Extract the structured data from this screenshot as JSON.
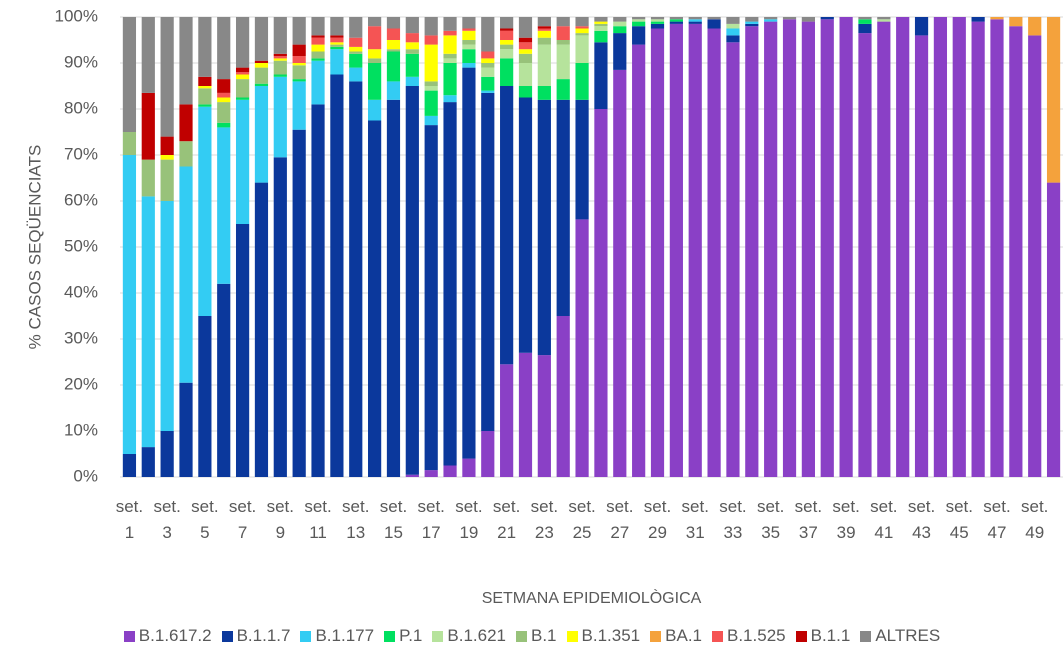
{
  "chart_data": {
    "type": "stacked_bar",
    "y_label": "% CASOS SEQÜENCIATS",
    "x_label": "SETMANA EPIDEMIOLÒGICA",
    "categories": [
      "set. 1",
      null,
      "set. 3",
      null,
      "set. 5",
      null,
      "set. 7",
      null,
      "set. 9",
      null,
      "set. 11",
      null,
      "set. 13",
      null,
      "set. 15",
      null,
      "set. 17",
      null,
      "set. 19",
      null,
      "set. 21",
      null,
      "set. 23",
      null,
      "set. 25",
      null,
      "set. 27",
      null,
      "set. 29",
      null,
      "set. 31",
      null,
      "set. 33",
      null,
      "set. 35",
      null,
      "set. 37",
      null,
      "set. 39",
      null,
      "set. 41",
      null,
      "set. 43",
      null,
      "set. 45",
      null,
      "set. 47",
      null,
      "set. 49",
      null
    ],
    "ylim": [
      0,
      100
    ],
    "yticks": [
      {
        "value": 0,
        "label": "0%"
      },
      {
        "value": 10,
        "label": "10%"
      },
      {
        "value": 20,
        "label": "20%"
      },
      {
        "value": 30,
        "label": "30%"
      },
      {
        "value": 40,
        "label": "40%"
      },
      {
        "value": 50,
        "label": "50%"
      },
      {
        "value": 60,
        "label": "60%"
      },
      {
        "value": 70,
        "label": "70%"
      },
      {
        "value": 80,
        "label": "80%"
      },
      {
        "value": 90,
        "label": "90%"
      },
      {
        "value": 100,
        "label": "100%"
      }
    ],
    "grid": true,
    "legend": "bottom",
    "series": [
      {
        "name": "B.1.617.2",
        "color": "#8a40c6",
        "values": [
          0,
          0,
          0,
          0,
          0,
          0,
          0,
          0,
          0,
          0,
          0,
          0,
          0,
          0,
          0,
          0.5,
          1.5,
          2.5,
          4,
          10,
          24.5,
          27,
          26.5,
          35,
          56,
          80,
          88.5,
          94,
          97.5,
          98.5,
          98.5,
          97.5,
          94.5,
          98,
          99,
          99.5,
          99,
          99.5,
          100,
          96.5,
          99,
          100,
          96,
          100,
          100,
          99,
          99.5,
          98,
          96,
          64
        ]
      },
      {
        "name": "B.1.1.7",
        "color": "#0b389c",
        "values": [
          5,
          6.5,
          10,
          20.5,
          35,
          42,
          55,
          64,
          69.5,
          75.5,
          81,
          87.5,
          86,
          77.5,
          82,
          84.5,
          75,
          79,
          85,
          73.5,
          60.5,
          55.5,
          55.5,
          47,
          26,
          14.5,
          8,
          4,
          1,
          0.5,
          0.5,
          2,
          1.5,
          0.5,
          0,
          0,
          0,
          0.5,
          0,
          2,
          0,
          0,
          4,
          0,
          0,
          1,
          0,
          0,
          0,
          0
        ]
      },
      {
        "name": "B.1.177",
        "color": "#33ccf3",
        "values": [
          65,
          54.5,
          50,
          47,
          45.5,
          34,
          27,
          21,
          17.5,
          10.5,
          9.5,
          5.5,
          3,
          4.5,
          4,
          2,
          2,
          1.5,
          1,
          0.5,
          0,
          0,
          0,
          0,
          0,
          0,
          0,
          0,
          0,
          0,
          0.5,
          0,
          1.5,
          0.5,
          0.5,
          0,
          0,
          0,
          0,
          0,
          0,
          0,
          0,
          0,
          0,
          0,
          0,
          0,
          0,
          0
        ]
      },
      {
        "name": "P.1",
        "color": "#00e060",
        "values": [
          0,
          0,
          0,
          0,
          0.5,
          1,
          0.5,
          0.5,
          0.5,
          0.5,
          0.5,
          0.5,
          3,
          8,
          6.5,
          5,
          5.5,
          7,
          3,
          3,
          6,
          2.5,
          3,
          4.5,
          8,
          2.5,
          1.5,
          1,
          0.5,
          0.5,
          0,
          0,
          0,
          0,
          0,
          0,
          0,
          0,
          0,
          1,
          0,
          0,
          0,
          0,
          0,
          0,
          0,
          0,
          0,
          0
        ]
      },
      {
        "name": "B.1.621",
        "color": "#b6e39c",
        "values": [
          0,
          0,
          0,
          0,
          0,
          0,
          0,
          0,
          0,
          0,
          0,
          0,
          0,
          0,
          0,
          0,
          1,
          1,
          1,
          2,
          2,
          5,
          9,
          7.5,
          6,
          1,
          1,
          0.5,
          0.5,
          0,
          0,
          0,
          1,
          0,
          0,
          0,
          0,
          0,
          0,
          0,
          0.5,
          0,
          0,
          0,
          0,
          0,
          0,
          0,
          0,
          0
        ]
      },
      {
        "name": "B.1",
        "color": "#98c27a",
        "values": [
          5,
          8,
          9,
          5.5,
          3.5,
          4.5,
          4,
          3.5,
          3,
          3,
          1.5,
          0.5,
          0.5,
          1,
          0.5,
          1,
          1,
          1,
          1,
          1,
          1,
          2,
          1.5,
          1,
          0.5,
          0.5,
          0,
          0,
          0,
          0,
          0,
          0,
          0,
          0,
          0,
          0,
          0,
          0,
          0,
          0,
          0,
          0,
          0,
          0,
          0,
          0,
          0,
          0,
          0,
          0
        ]
      },
      {
        "name": "B.1.351",
        "color": "#ffff00",
        "values": [
          0,
          0,
          1,
          0,
          0.5,
          1,
          1,
          1,
          0.5,
          0.5,
          1.5,
          0.5,
          1,
          2,
          2,
          1.5,
          8,
          4,
          2,
          1,
          1,
          1,
          1.5,
          0,
          1,
          0.5,
          0,
          0,
          0,
          0,
          0,
          0,
          0,
          0,
          0,
          0,
          0,
          0,
          0,
          0,
          0,
          0,
          0,
          0,
          0,
          0,
          0,
          0,
          0,
          0
        ]
      },
      {
        "name": "BA.1",
        "color": "#f4a23c",
        "values": [
          0,
          0,
          0,
          0,
          0,
          0,
          0,
          0,
          0,
          0,
          0,
          0,
          0,
          0,
          0,
          0,
          0,
          0,
          0,
          0,
          0,
          0,
          0,
          0,
          0,
          0,
          0,
          0,
          0,
          0,
          0,
          0,
          0,
          0,
          0,
          0,
          0,
          0,
          0,
          0,
          0,
          0,
          0,
          0,
          0,
          0,
          0.5,
          2,
          4,
          36
        ]
      },
      {
        "name": "B.1.525",
        "color": "#f55454",
        "values": [
          0,
          0,
          0,
          0,
          0,
          1,
          0.5,
          0,
          0.5,
          1.5,
          1.5,
          1,
          2,
          5,
          2.5,
          2,
          2,
          1,
          0.5,
          1.5,
          2,
          1.5,
          0.5,
          3,
          0.5,
          0,
          0,
          0,
          0,
          0,
          0,
          0,
          0,
          0,
          0,
          0,
          0,
          0,
          0,
          0,
          0,
          0,
          0,
          0,
          0,
          0,
          0,
          0,
          0,
          0
        ]
      },
      {
        "name": "B.1.1",
        "color": "#c00000",
        "values": [
          0,
          14.5,
          4,
          8,
          2,
          3,
          1,
          0.5,
          0.5,
          2.5,
          0.5,
          0.5,
          0,
          0,
          0,
          0,
          0,
          0,
          0,
          0,
          0.5,
          1,
          0.5,
          0,
          0,
          0,
          0,
          0,
          0,
          0,
          0,
          0,
          0,
          0,
          0,
          0,
          0,
          0,
          0,
          0,
          0,
          0,
          0,
          0,
          0,
          0,
          0,
          0,
          0,
          0
        ]
      },
      {
        "name": "ALTRES",
        "color": "#888888",
        "values": [
          25,
          16.5,
          26,
          19,
          13,
          13.5,
          11,
          9.5,
          8,
          6,
          4,
          4,
          4.5,
          2,
          2.5,
          3.5,
          4,
          3,
          2.5,
          7.5,
          2.5,
          4.5,
          2,
          2,
          2,
          1,
          1,
          0.5,
          0.5,
          0.5,
          0.5,
          0.5,
          1.5,
          1,
          0.5,
          0.5,
          1,
          0,
          0,
          0.5,
          0.5,
          0,
          0,
          0,
          0,
          0,
          0,
          0,
          0,
          0
        ]
      }
    ]
  }
}
